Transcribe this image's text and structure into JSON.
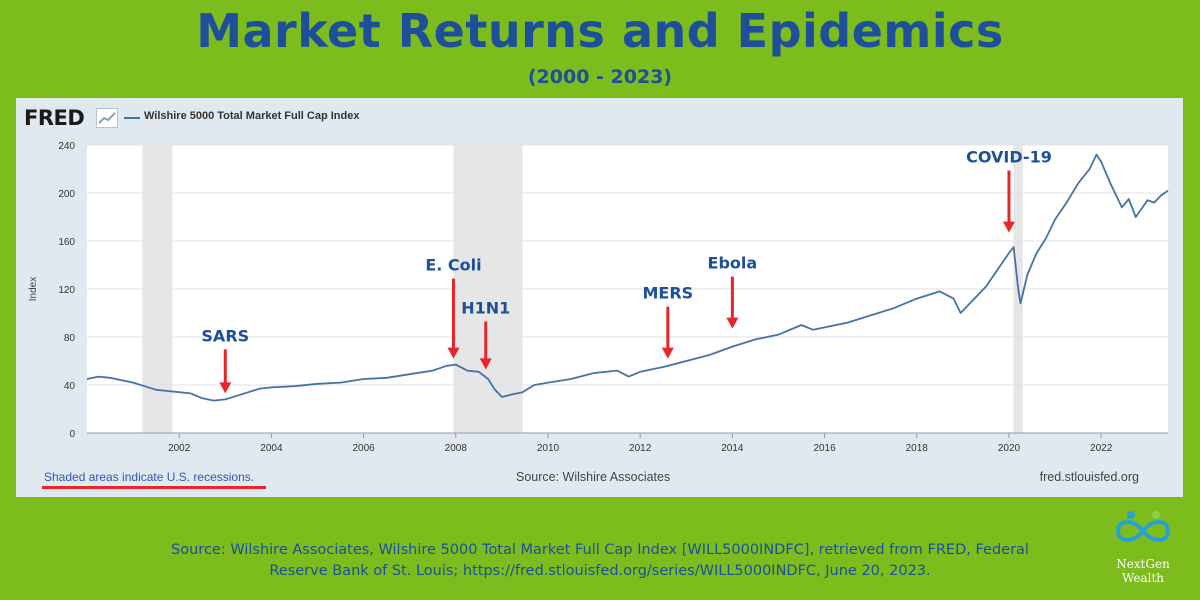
{
  "title": "Market Returns and Epidemics",
  "subtitle": "(2000 - 2023)",
  "fred": {
    "logo": "FRED",
    "legend": "Wilshire 5000 Total Market Full Cap Index",
    "recession_note": "Shaded areas indicate U.S. recessions.",
    "source": "Source: Wilshire Associates",
    "site": "fred.stlouisfed.org"
  },
  "credit_lines": [
    "Source: Wilshire Associates, Wilshire 5000 Total Market Full Cap Index [WILL5000INDFC], retrieved from FRED, Federal",
    "Reserve Bank of St. Louis; https://fred.stlouisfed.org/series/WILL5000INDFC, June 20, 2023."
  ],
  "brand": {
    "line1": "NextGen",
    "line2": "Wealth"
  },
  "colors": {
    "background": "#7cbc1c",
    "title": "#1d4f9b",
    "series": "#4572a7",
    "arrow": "#e8262a",
    "recession": "#e6e6e6"
  },
  "chart_data": {
    "type": "line",
    "xlabel": "",
    "ylabel": "Index",
    "xlim": [
      2000.0,
      2023.45
    ],
    "ylim": [
      0,
      240
    ],
    "y_ticks": [
      0,
      40,
      80,
      120,
      160,
      200,
      240
    ],
    "x_ticks": [
      2002,
      2004,
      2006,
      2008,
      2010,
      2012,
      2014,
      2016,
      2018,
      2020,
      2022
    ],
    "grid": true,
    "legend_position": "top-left",
    "recessions": [
      [
        2001.2,
        2001.85
      ],
      [
        2007.95,
        2009.45
      ],
      [
        2020.1,
        2020.3
      ]
    ],
    "series": [
      {
        "name": "Wilshire 5000 Total Market Full Cap Index",
        "x": [
          2000.0,
          2000.25,
          2000.5,
          2000.75,
          2001.0,
          2001.25,
          2001.5,
          2001.75,
          2002.0,
          2002.25,
          2002.5,
          2002.75,
          2003.0,
          2003.25,
          2003.5,
          2003.75,
          2004.0,
          2004.5,
          2005.0,
          2005.5,
          2006.0,
          2006.5,
          2007.0,
          2007.5,
          2007.8,
          2008.0,
          2008.25,
          2008.5,
          2008.7,
          2008.85,
          2009.0,
          2009.2,
          2009.45,
          2009.7,
          2010.0,
          2010.5,
          2011.0,
          2011.5,
          2011.75,
          2012.0,
          2012.5,
          2013.0,
          2013.5,
          2014.0,
          2014.5,
          2015.0,
          2015.5,
          2015.75,
          2016.0,
          2016.5,
          2017.0,
          2017.5,
          2018.0,
          2018.5,
          2018.8,
          2018.95,
          2019.0,
          2019.5,
          2020.0,
          2020.1,
          2020.2,
          2020.25,
          2020.4,
          2020.6,
          2020.8,
          2021.0,
          2021.25,
          2021.5,
          2021.75,
          2021.9,
          2022.0,
          2022.2,
          2022.45,
          2022.6,
          2022.75,
          2022.9,
          2023.0,
          2023.15,
          2023.3,
          2023.45
        ],
        "y": [
          45,
          47,
          46,
          44,
          42,
          39,
          36,
          35,
          34,
          33,
          29,
          27,
          28,
          31,
          34,
          37,
          38,
          39,
          41,
          42,
          45,
          46,
          49,
          52,
          56,
          57,
          52,
          51,
          45,
          36,
          30,
          32,
          34,
          40,
          42,
          45,
          50,
          52,
          47,
          51,
          55,
          60,
          65,
          72,
          78,
          82,
          90,
          86,
          88,
          92,
          98,
          104,
          112,
          118,
          112,
          100,
          102,
          122,
          150,
          155,
          120,
          108,
          132,
          150,
          162,
          178,
          192,
          208,
          220,
          232,
          226,
          208,
          188,
          195,
          180,
          188,
          194,
          192,
          198,
          202
        ]
      }
    ],
    "annotations": [
      {
        "label": "SARS",
        "x": 2003.0,
        "y": 28
      },
      {
        "label": "E. Coli",
        "x": 2007.95,
        "y": 57
      },
      {
        "label": "H1N1",
        "x": 2008.65,
        "y": 48
      },
      {
        "label": "MERS",
        "x": 2012.6,
        "y": 57
      },
      {
        "label": "Ebola",
        "x": 2014.0,
        "y": 82
      },
      {
        "label": "COVID-19",
        "x": 2020.0,
        "y": 162
      }
    ]
  }
}
